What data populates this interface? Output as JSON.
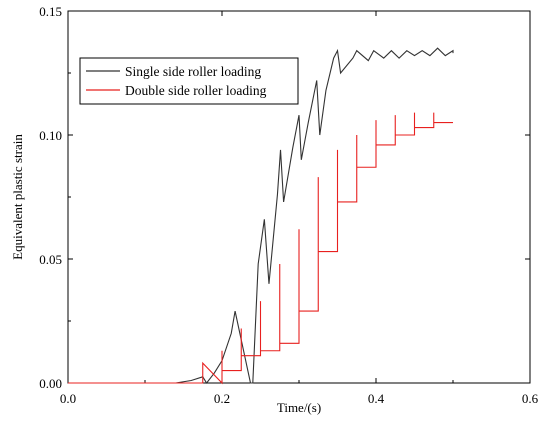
{
  "chart_data": {
    "type": "line",
    "title": "",
    "xlabel": "Time/(s)",
    "ylabel": "Equivalent plastic strain",
    "xlim": [
      0.0,
      0.6
    ],
    "ylim": [
      0.0,
      0.15
    ],
    "xticks": [
      0.0,
      0.2,
      0.4,
      0.6
    ],
    "xtick_labels": [
      "0.0",
      "0.2",
      "0.4",
      "0.6"
    ],
    "yticks": [
      0.0,
      0.05,
      0.1,
      0.15
    ],
    "ytick_labels": [
      "0.00",
      "0.05",
      "0.10",
      "0.15"
    ],
    "grid": false,
    "legend_position": "top-left",
    "series": [
      {
        "name": "Single side roller loading",
        "color": "#333333",
        "x": [
          0.0,
          0.14,
          0.16,
          0.175,
          0.18,
          0.19,
          0.2,
          0.212,
          0.217,
          0.237,
          0.24,
          0.247,
          0.255,
          0.261,
          0.272,
          0.276,
          0.28,
          0.292,
          0.3,
          0.303,
          0.312,
          0.323,
          0.327,
          0.335,
          0.345,
          0.35,
          0.354,
          0.37,
          0.375,
          0.39,
          0.397,
          0.41,
          0.42,
          0.43,
          0.44,
          0.45,
          0.46,
          0.47,
          0.48,
          0.49,
          0.5,
          0.5
        ],
        "y": [
          0.0,
          0.0,
          0.001,
          0.0025,
          0.0,
          0.004,
          0.009,
          0.02,
          0.029,
          0.0,
          0.0,
          0.048,
          0.066,
          0.04,
          0.076,
          0.094,
          0.073,
          0.095,
          0.108,
          0.09,
          0.105,
          0.122,
          0.1,
          0.118,
          0.131,
          0.134,
          0.125,
          0.131,
          0.134,
          0.13,
          0.134,
          0.131,
          0.134,
          0.131,
          0.134,
          0.132,
          0.134,
          0.132,
          0.135,
          0.132,
          0.134,
          0.133
        ]
      },
      {
        "name": "Double side roller loading",
        "color": "#e8201f",
        "x": [
          0.0,
          0.17,
          0.175,
          0.175,
          0.2,
          0.2,
          0.2,
          0.225,
          0.225,
          0.225,
          0.25,
          0.25,
          0.25,
          0.275,
          0.275,
          0.275,
          0.3,
          0.3,
          0.3,
          0.325,
          0.325,
          0.325,
          0.35,
          0.35,
          0.35,
          0.375,
          0.375,
          0.375,
          0.4,
          0.4,
          0.4,
          0.425,
          0.425,
          0.425,
          0.45,
          0.45,
          0.45,
          0.475,
          0.475,
          0.475,
          0.5
        ],
        "y": [
          0.0,
          0.0,
          0.0,
          0.008,
          0.0,
          0.013,
          0.005,
          0.005,
          0.022,
          0.011,
          0.011,
          0.033,
          0.013,
          0.013,
          0.048,
          0.016,
          0.016,
          0.062,
          0.029,
          0.029,
          0.083,
          0.053,
          0.053,
          0.094,
          0.073,
          0.073,
          0.1,
          0.087,
          0.087,
          0.106,
          0.096,
          0.096,
          0.108,
          0.1,
          0.1,
          0.109,
          0.103,
          0.103,
          0.109,
          0.105,
          0.105
        ]
      }
    ]
  }
}
